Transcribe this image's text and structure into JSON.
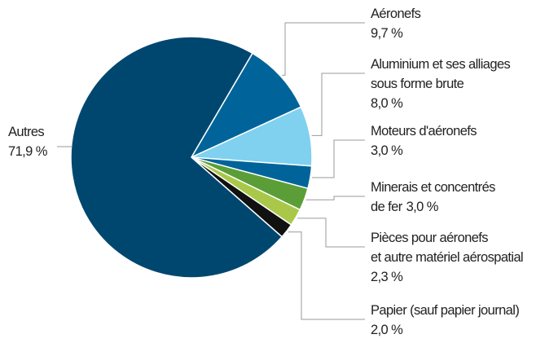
{
  "chart_data": {
    "type": "pie",
    "categories": [
      [
        "Aéronefs"
      ],
      [
        "Aluminium et ses alliages",
        "sous forme brute"
      ],
      [
        "Moteurs d'aéronefs"
      ],
      [
        "Minerais et concentrés",
        "de fer"
      ],
      [
        "Pièces pour aéronefs",
        "et autre matériel aérospatial"
      ],
      [
        "Papier (sauf papier journal)"
      ],
      [
        "Autres"
      ]
    ],
    "values": [
      9.7,
      8.0,
      3.0,
      3.0,
      2.3,
      2.0,
      71.9
    ],
    "value_labels": [
      "9,7 %",
      "8,0 %",
      "3,0 %",
      "3,0 %",
      "2,3 %",
      "2,0 %",
      "71,9 %"
    ],
    "colors": [
      "#00649a",
      "#7fd1ef",
      "#00649a",
      "#5b9e37",
      "#a9c84a",
      "#111111",
      "#00476f"
    ]
  }
}
